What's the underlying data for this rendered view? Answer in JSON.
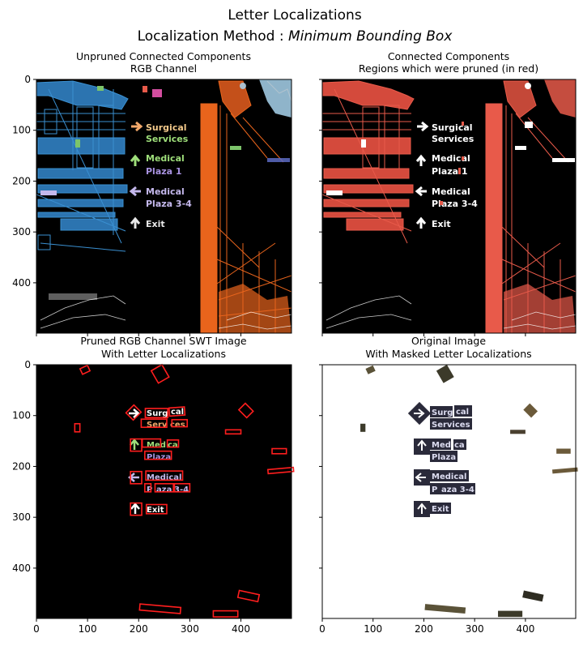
{
  "figure": {
    "title_line1": "Letter Localizations",
    "title_line2_prefix": "Localization Method : ",
    "title_line2_method": "Minimum Bounding Box"
  },
  "panels": [
    {
      "id": "unpruned",
      "title1": "Unpruned Connected Components",
      "title2": "RGB Channel"
    },
    {
      "id": "pruned",
      "title1": "Connected Components",
      "title2": "Regions which were pruned (in red)"
    },
    {
      "id": "swt",
      "title1": "Pruned RGB Channel SWT Image",
      "title2": "With Letter Localizations"
    },
    {
      "id": "original",
      "title1": "Original Image",
      "title2": "With Masked Letter Localizations"
    }
  ],
  "sign_text": [
    "Surgical",
    "Services",
    "Medical",
    "Plaza 1",
    "Medical",
    "Plaza 3-4",
    "Exit"
  ],
  "swt_text": [
    "Surg",
    "cal",
    "Serv",
    "ces",
    "Med",
    "ca",
    "Plaza",
    "Medical",
    "P",
    "aza",
    "3-4",
    "Exit"
  ],
  "masked_text": [
    "Surg",
    "cal",
    "Services",
    "Med",
    "ca",
    "Plaza",
    "Medical",
    "P",
    "aza 3-4",
    "Exit"
  ],
  "chart_data": {
    "type": "image-grid",
    "image_extent": {
      "x": [
        0,
        499
      ],
      "y": [
        0,
        499
      ]
    },
    "x_ticks": [
      0,
      100,
      200,
      300,
      400
    ],
    "y_ticks": [
      0,
      100,
      200,
      300,
      400
    ],
    "colors": {
      "background": "#000000",
      "blue": "#3a8fd0",
      "orange": "#e8641c",
      "red": "#e85a4a",
      "box": "#ff1e1e",
      "light_blue": "#a8d4ee"
    },
    "letter_boxes": [
      {
        "x": 95,
        "y": 10,
        "w": 16,
        "h": 12,
        "angle": -25
      },
      {
        "x": 242,
        "y": 18,
        "w": 24,
        "h": 28,
        "angle": -30
      },
      {
        "x": 190,
        "y": 94,
        "w": 20,
        "h": 22,
        "angle": 45
      },
      {
        "x": 235,
        "y": 95,
        "w": 44,
        "h": 18,
        "angle": 0
      },
      {
        "x": 275,
        "y": 92,
        "w": 30,
        "h": 16,
        "angle": -4
      },
      {
        "x": 230,
        "y": 115,
        "w": 50,
        "h": 16,
        "angle": 0
      },
      {
        "x": 280,
        "y": 115,
        "w": 30,
        "h": 14,
        "angle": 0
      },
      {
        "x": 80,
        "y": 124,
        "w": 10,
        "h": 16,
        "angle": 0
      },
      {
        "x": 410,
        "y": 90,
        "w": 18,
        "h": 22,
        "angle": -45
      },
      {
        "x": 385,
        "y": 132,
        "w": 30,
        "h": 8,
        "angle": 0
      },
      {
        "x": 195,
        "y": 158,
        "w": 22,
        "h": 24,
        "angle": 0
      },
      {
        "x": 225,
        "y": 154,
        "w": 36,
        "h": 16,
        "angle": 0
      },
      {
        "x": 267,
        "y": 155,
        "w": 22,
        "h": 14,
        "angle": 0
      },
      {
        "x": 238,
        "y": 178,
        "w": 52,
        "h": 16,
        "angle": 0
      },
      {
        "x": 475,
        "y": 170,
        "w": 28,
        "h": 10,
        "angle": 0
      },
      {
        "x": 195,
        "y": 222,
        "w": 22,
        "h": 24,
        "angle": 0
      },
      {
        "x": 250,
        "y": 218,
        "w": 72,
        "h": 18,
        "angle": 0
      },
      {
        "x": 218,
        "y": 242,
        "w": 12,
        "h": 16,
        "angle": 0
      },
      {
        "x": 250,
        "y": 242,
        "w": 36,
        "h": 16,
        "angle": 0
      },
      {
        "x": 285,
        "y": 242,
        "w": 30,
        "h": 16,
        "angle": 0
      },
      {
        "x": 478,
        "y": 208,
        "w": 50,
        "h": 8,
        "angle": -5
      },
      {
        "x": 195,
        "y": 284,
        "w": 22,
        "h": 24,
        "angle": 0
      },
      {
        "x": 235,
        "y": 284,
        "w": 40,
        "h": 18,
        "angle": 0
      },
      {
        "x": 415,
        "y": 455,
        "w": 40,
        "h": 14,
        "angle": 12
      },
      {
        "x": 242,
        "y": 480,
        "w": 80,
        "h": 12,
        "angle": 5
      },
      {
        "x": 370,
        "y": 490,
        "w": 48,
        "h": 12,
        "angle": 0
      }
    ]
  }
}
